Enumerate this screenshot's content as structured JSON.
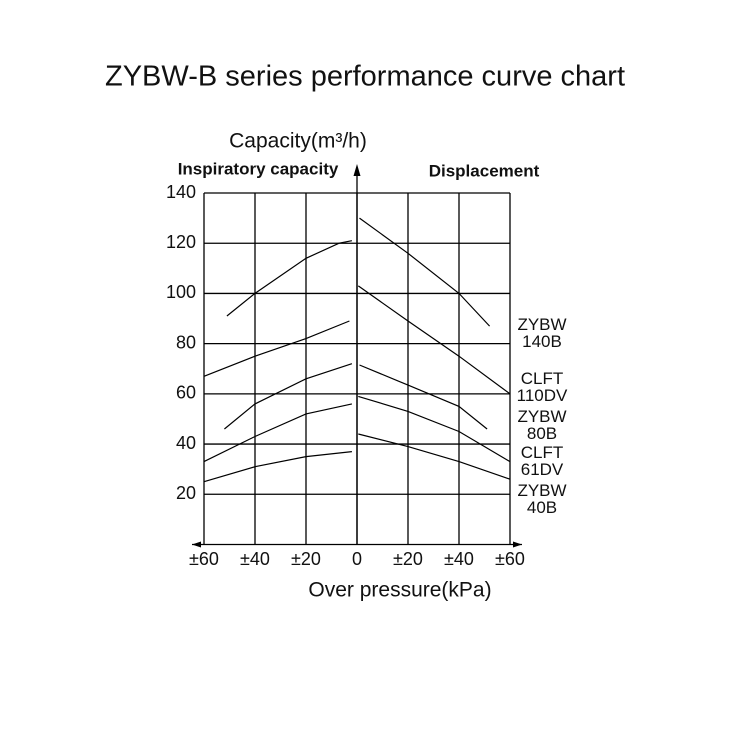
{
  "chart_data": {
    "type": "line",
    "title": "ZYBW-B series performance curve chart",
    "y_label": "Capacity(m³/h)",
    "x_label": "Over pressure(kPa)",
    "left_label": "Inspiratory capacity",
    "right_label": "Displacement",
    "xlim": [
      -60,
      60
    ],
    "ylim": [
      0,
      140
    ],
    "xticks": [
      {
        "value": -60,
        "label": "±60"
      },
      {
        "value": -40,
        "label": "±40"
      },
      {
        "value": -20,
        "label": "±20"
      },
      0,
      {
        "value": 20,
        "label": "±20"
      },
      {
        "value": 40,
        "label": "±40"
      },
      {
        "value": 60,
        "label": "±60"
      }
    ],
    "yticks": [
      20,
      40,
      60,
      80,
      100,
      120,
      140
    ],
    "grid": true,
    "series": [
      {
        "name": "ZYBW 140B",
        "color": "#000000",
        "x": [
          -51,
          -40,
          -20,
          -7,
          -2,
          null,
          1,
          20,
          40,
          52
        ],
        "values": [
          91,
          100,
          114,
          120,
          121,
          null,
          130,
          116,
          100,
          87
        ]
      },
      {
        "name": "CLFT 110DV",
        "color": "#000000",
        "x": [
          -60,
          -40,
          -20,
          -3,
          null,
          0.5,
          20,
          40,
          60
        ],
        "values": [
          67,
          75,
          82,
          89,
          null,
          103,
          89,
          75,
          60
        ]
      },
      {
        "name": "ZYBW 80B",
        "color": "#000000",
        "x": [
          -52,
          -40,
          -20,
          -2,
          null,
          1,
          20,
          40,
          51
        ],
        "values": [
          46,
          56,
          66,
          72,
          null,
          71.5,
          63.5,
          55,
          46
        ]
      },
      {
        "name": "CLFT 61DV",
        "color": "#000000",
        "x": [
          -60,
          -40,
          -20,
          -2,
          null,
          0.5,
          20,
          40,
          60
        ],
        "values": [
          33,
          43,
          52,
          56,
          null,
          59,
          53,
          45,
          33
        ]
      },
      {
        "name": "ZYBW 40B",
        "color": "#000000",
        "x": [
          -60,
          -40,
          -20,
          -2,
          null,
          0.5,
          20,
          40,
          60
        ],
        "values": [
          25,
          31,
          35,
          37,
          null,
          44,
          39,
          33,
          26
        ]
      }
    ]
  }
}
